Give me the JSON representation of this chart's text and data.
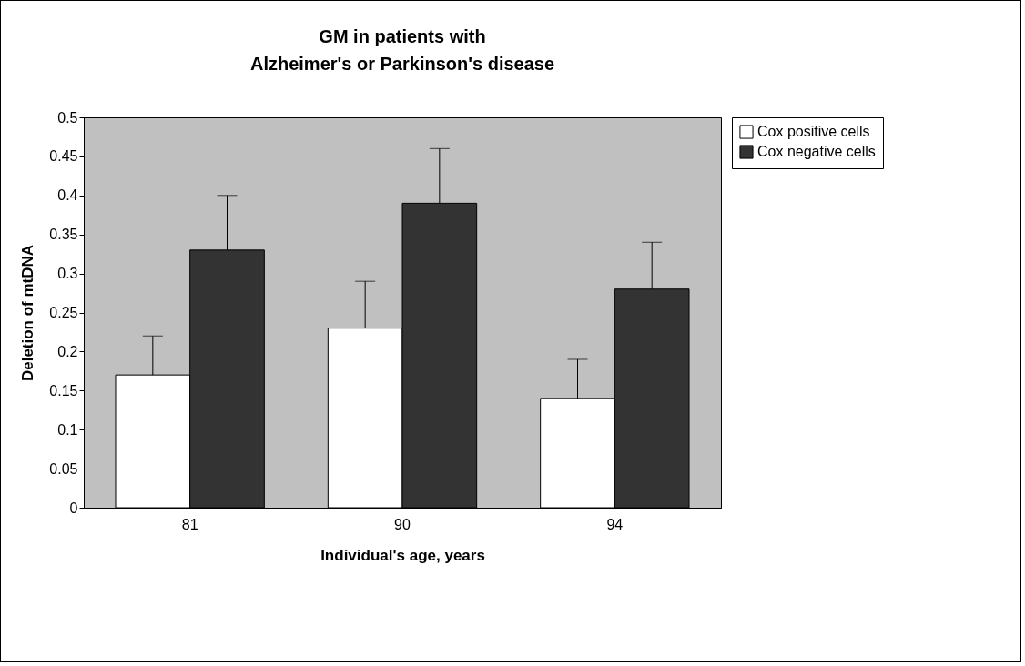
{
  "chart_data": {
    "type": "bar",
    "title": "GM in patients with\nAlzheimer's or Parkinson's disease",
    "xlabel": "Individual's age, years",
    "ylabel": "Deletion of mtDNA",
    "categories": [
      "81",
      "90",
      "94"
    ],
    "series": [
      {
        "name": "Cox positive cells",
        "color": "#ffffff",
        "values": [
          0.17,
          0.23,
          0.14
        ],
        "errors": [
          [
            0.17,
            0.22
          ],
          [
            0.23,
            0.29
          ],
          [
            0.14,
            0.19
          ]
        ]
      },
      {
        "name": "Cox negative cells",
        "color": "#333333",
        "values": [
          0.33,
          0.39,
          0.28
        ],
        "errors": [
          [
            0.33,
            0.4
          ],
          [
            0.39,
            0.46
          ],
          [
            0.28,
            0.34
          ]
        ]
      }
    ],
    "ylim": [
      0,
      0.5
    ],
    "yticks": [
      0,
      0.05,
      0.1,
      0.15,
      0.2,
      0.25,
      0.3,
      0.35,
      0.4,
      0.45,
      0.5
    ],
    "grid": false,
    "legend": "right"
  }
}
